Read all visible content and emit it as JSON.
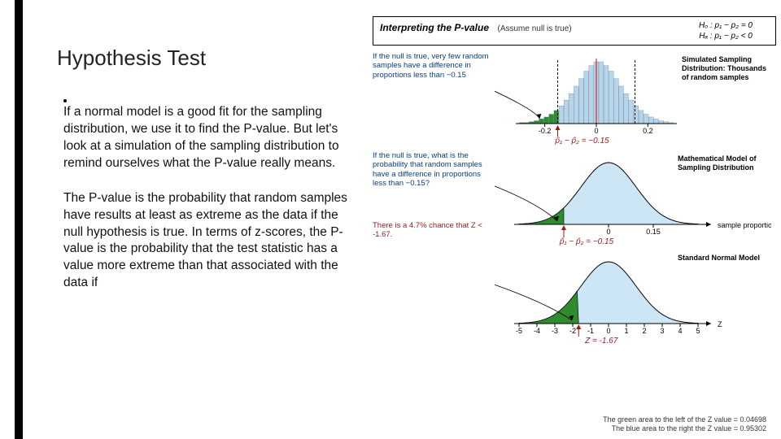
{
  "title": "Hypothesis Test",
  "para1": "If a normal model is a good fit for the sampling distribution, we use it to find the P-value. But let's look at a simulation of the sampling distribution to remind ourselves what the P-value really means.",
  "para2": "The P-value is the probability that random samples have results at least as extreme as the data if the null hypothesis is true. In terms of z-scores, the P-value is the probability that the test statistic has a value more extreme than that associated with the data if",
  "interp": {
    "title": "Interpreting the P-value",
    "assume": "(Assume null is true)",
    "h0": "Hₒ : p₁ − p₂ = 0",
    "ha": "Hₐ : p₁ − p₂ < 0"
  },
  "sec1": {
    "note": "If the null is true, very few random samples have a difference in proportions less than −0.15",
    "title": "Simulated Sampling Distribution: Thousands of random samples",
    "formula": "p̂₁ − p̂₂ = −0.15",
    "histogram": {
      "bins": [
        -0.3,
        -0.28,
        -0.26,
        -0.24,
        -0.22,
        -0.2,
        -0.18,
        -0.16,
        -0.14,
        -0.12,
        -0.1,
        -0.08,
        -0.06,
        -0.04,
        -0.02,
        0.0,
        0.02,
        0.04,
        0.06,
        0.08,
        0.1,
        0.12,
        0.14,
        0.16,
        0.18,
        0.2,
        0.22,
        0.24,
        0.26,
        0.28,
        0.3
      ],
      "heights": [
        1,
        1,
        2,
        3,
        5,
        7,
        10,
        14,
        19,
        25,
        32,
        40,
        48,
        56,
        62,
        66,
        66,
        62,
        56,
        48,
        40,
        32,
        25,
        19,
        14,
        10,
        7,
        5,
        3,
        2,
        1
      ],
      "fill_default": "#b8d4e8",
      "fill_highlight": "#2e8b2e",
      "stroke": "#5a7a9a",
      "cut": -0.15,
      "xticks": [
        -0.2,
        0,
        0.2
      ],
      "axis_y": 88
    }
  },
  "sec2": {
    "note": "If the null is true, what is the probability that random samples have a difference in proportions less than −0.15?",
    "note2": "There is a 4.7% chance that Z < -1.67.",
    "title": "Mathematical Model of Sampling Distribution",
    "formula": "p̂₁ − p̂₂ = −0.15",
    "curve": {
      "fill_main": "#cde6f5",
      "fill_tail": "#2e8b2e",
      "stroke": "#000",
      "cut": -0.15,
      "xrange": [
        -0.3,
        0.3
      ],
      "xticks": [
        0,
        0.15
      ],
      "axis_y": 90,
      "side_label": "sample proportions"
    }
  },
  "sec3": {
    "title": "Standard Normal Model",
    "formula": "Z = -1.67",
    "curve": {
      "fill_main": "#cde6f5",
      "fill_tail": "#2e8b2e",
      "stroke": "#000",
      "cut": -1.67,
      "xrange": [
        -5,
        5
      ],
      "xticks": [
        -5,
        -4,
        -3,
        -2,
        -1,
        0,
        1,
        2,
        3,
        4,
        5
      ],
      "axis_y": 90,
      "side_label": "Z"
    }
  },
  "footer1": "The green area to the left of the Z value = 0.04698",
  "footer2": "The blue area to the right the Z value = 0.95302"
}
